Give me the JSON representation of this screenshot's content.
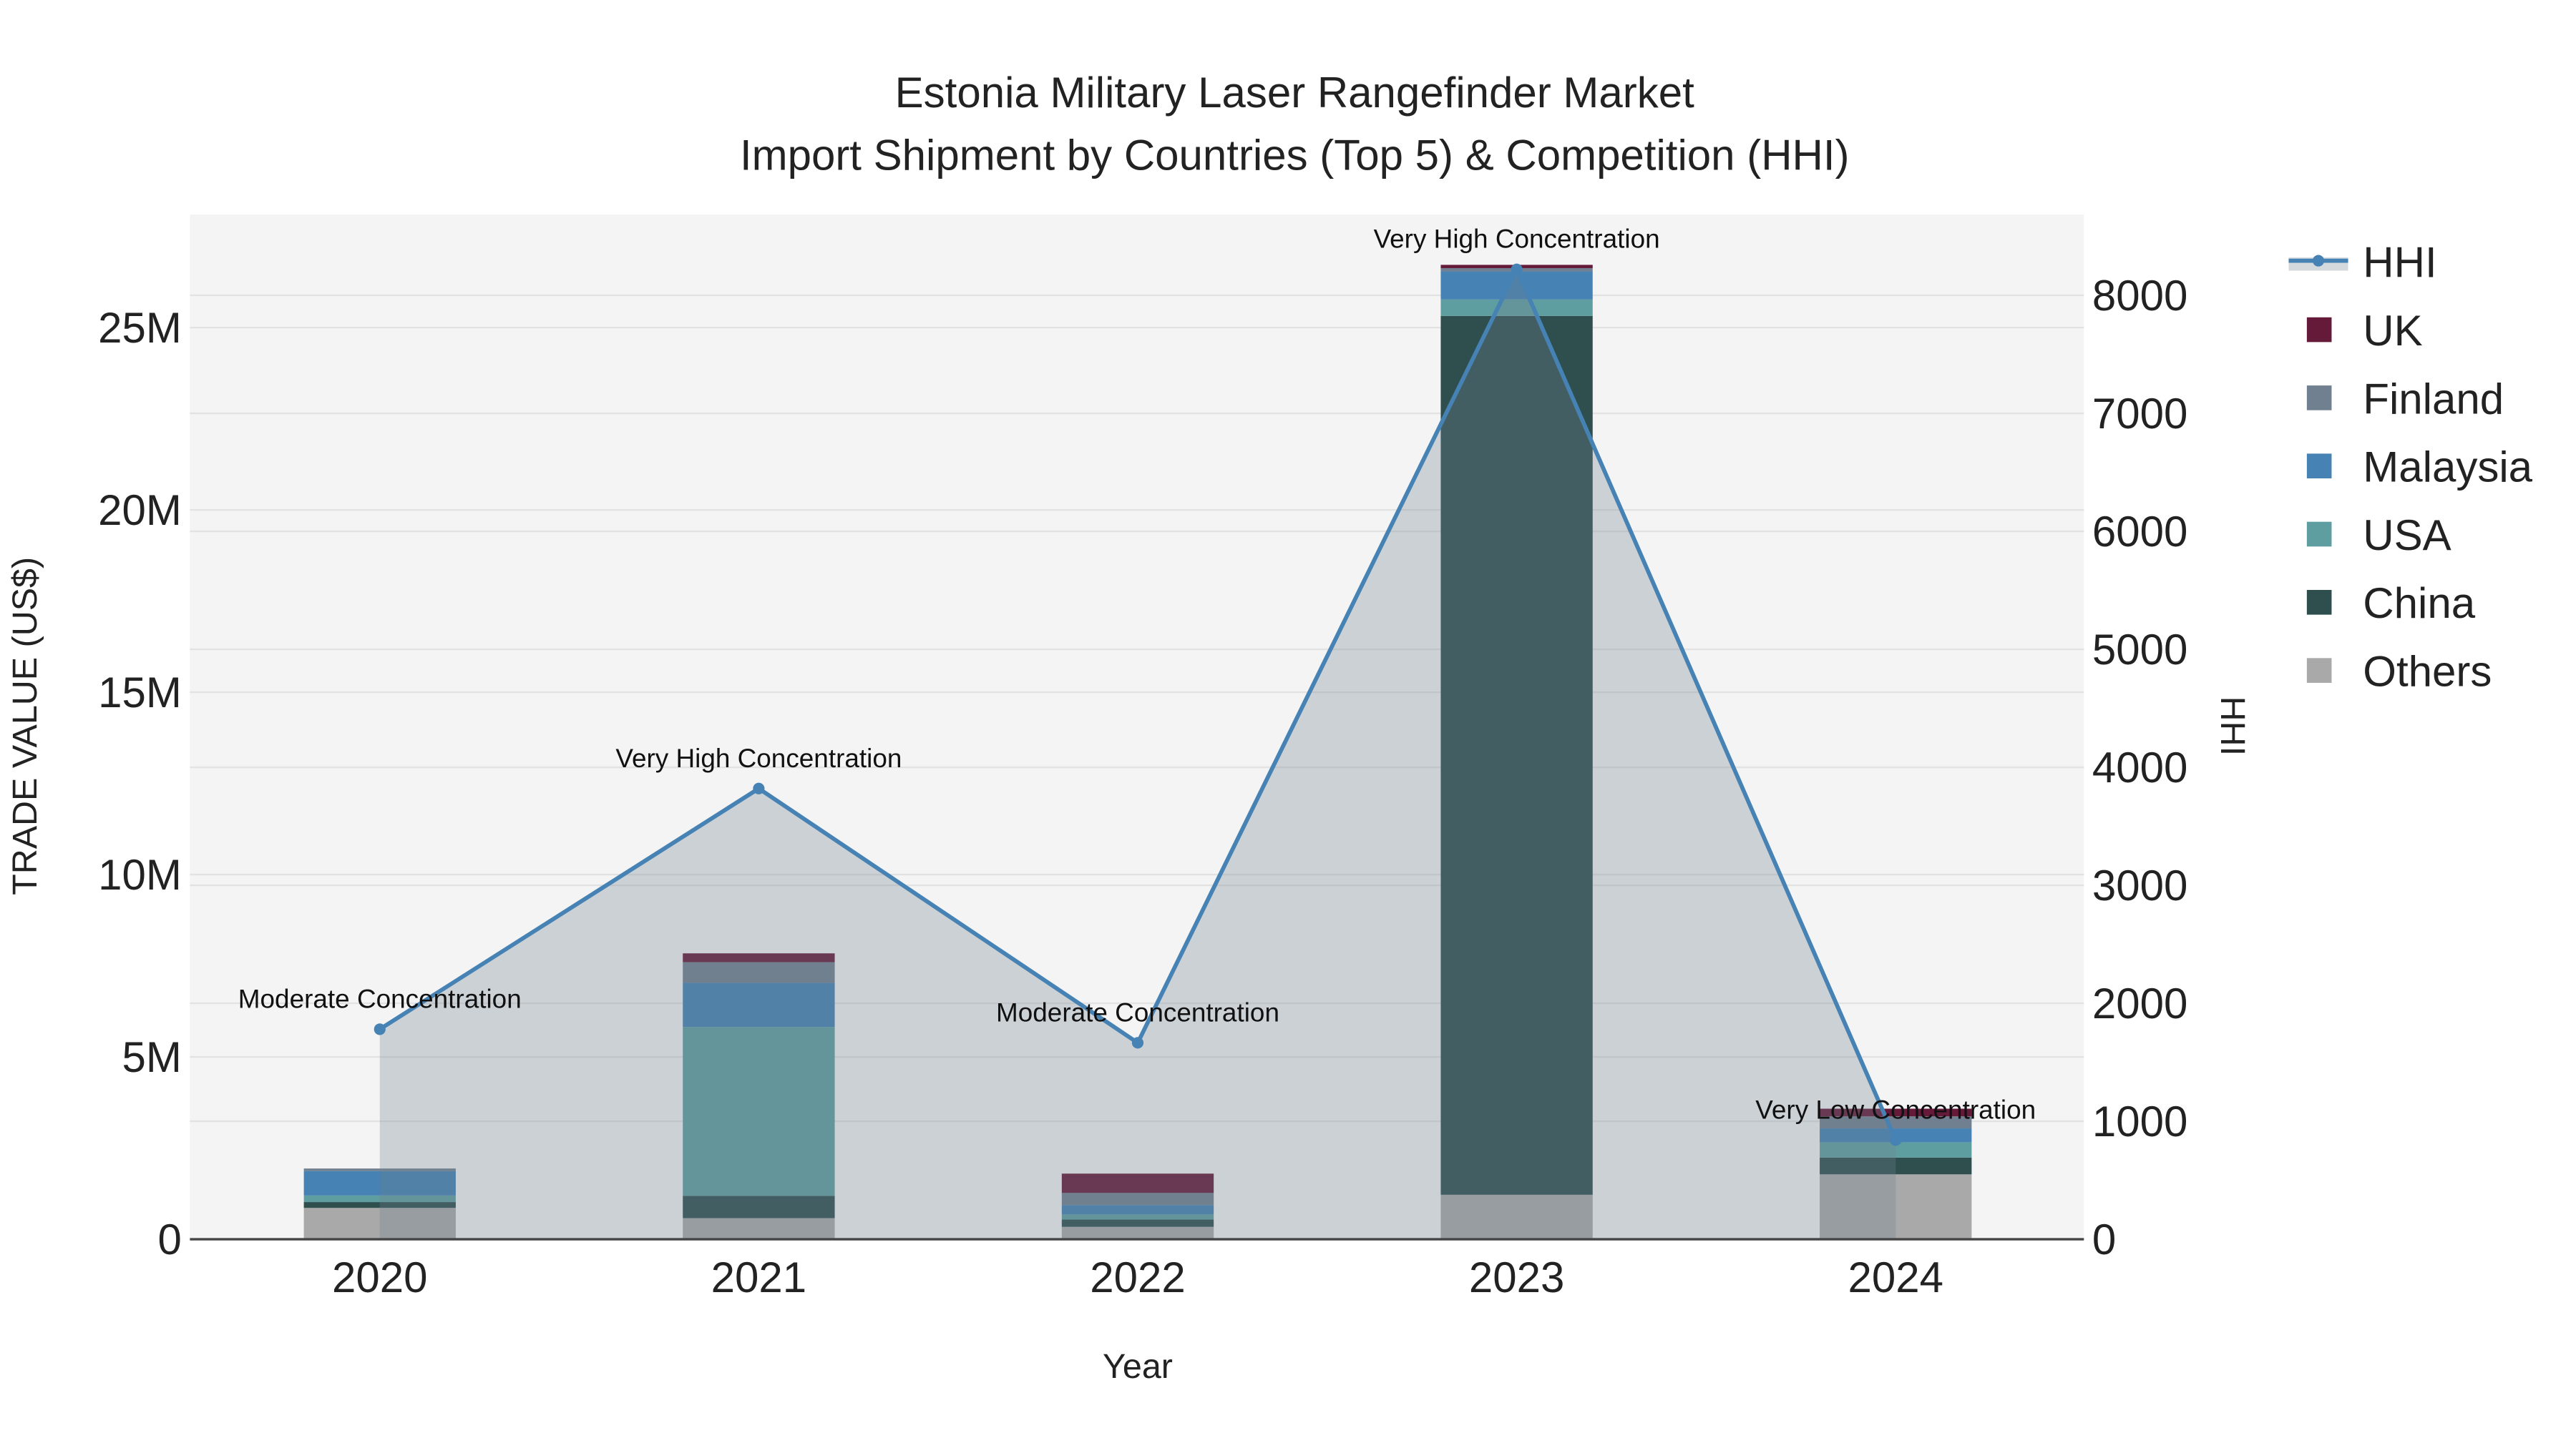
{
  "chart_data": {
    "type": "bar",
    "title": "Estonia Military Laser Rangefinder Market",
    "subtitle": "Import Shipment by Countries (Top 5) & Competition (HHI)",
    "xlabel": "Year",
    "ylabel": "TRADE VALUE (US$)",
    "y2label": "HHI",
    "categories": [
      "2020",
      "2021",
      "2022",
      "2023",
      "2024"
    ],
    "ylim": [
      0,
      28100000
    ],
    "y2lim": [
      0,
      8685
    ],
    "yticks": [
      {
        "v": 0,
        "label": "0"
      },
      {
        "v": 5000000,
        "label": "5M"
      },
      {
        "v": 10000000,
        "label": "10M"
      },
      {
        "v": 15000000,
        "label": "15M"
      },
      {
        "v": 20000000,
        "label": "20M"
      },
      {
        "v": 25000000,
        "label": "25M"
      }
    ],
    "y2ticks": [
      {
        "v": 0,
        "label": "0"
      },
      {
        "v": 1000,
        "label": "1000"
      },
      {
        "v": 2000,
        "label": "2000"
      },
      {
        "v": 3000,
        "label": "3000"
      },
      {
        "v": 4000,
        "label": "4000"
      },
      {
        "v": 5000,
        "label": "5000"
      },
      {
        "v": 6000,
        "label": "6000"
      },
      {
        "v": 7000,
        "label": "7000"
      },
      {
        "v": 8000,
        "label": "8000"
      }
    ],
    "stacked": true,
    "series": [
      {
        "name": "Others",
        "color": "#a9a9a9",
        "values": [
          860000,
          580000,
          340000,
          1220000,
          1780000
        ]
      },
      {
        "name": "China",
        "color": "#2f4f4f",
        "values": [
          160000,
          610000,
          200000,
          24100000,
          460000
        ]
      },
      {
        "name": "USA",
        "color": "#5f9ea0",
        "values": [
          180000,
          4630000,
          140000,
          450000,
          420000
        ]
      },
      {
        "name": "Malaysia",
        "color": "#4682b4",
        "values": [
          670000,
          1210000,
          260000,
          770000,
          380000
        ]
      },
      {
        "name": "Finland",
        "color": "#708090",
        "values": [
          70000,
          570000,
          330000,
          90000,
          330000
        ]
      },
      {
        "name": "UK",
        "color": "#661a3a",
        "values": [
          0,
          240000,
          530000,
          90000,
          210000
        ]
      }
    ],
    "hhi": {
      "name": "HHI",
      "color": "#4682b4",
      "values": [
        1780,
        3820,
        1665,
        8220,
        840
      ],
      "annotations": [
        "Moderate Concentration",
        "Very High Concentration",
        "Moderate Concentration",
        "Very High Concentration",
        "Very Low Concentration"
      ]
    },
    "legend": {
      "placement": "right",
      "order": [
        "HHI",
        "UK",
        "Finland",
        "Malaysia",
        "USA",
        "China",
        "Others"
      ]
    },
    "grid": true
  }
}
